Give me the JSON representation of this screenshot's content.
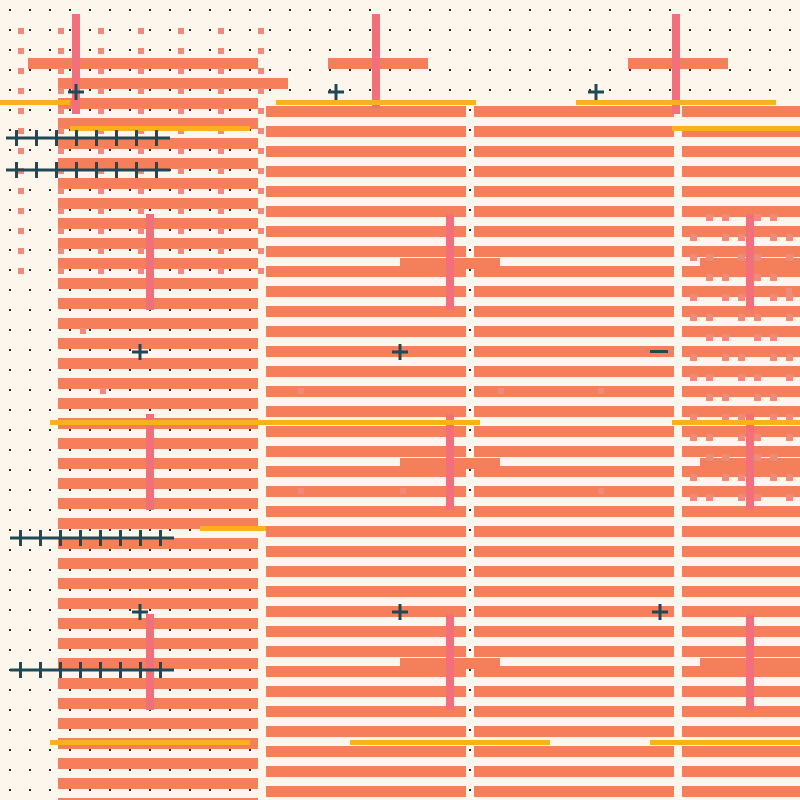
{
  "artwork": {
    "palette": {
      "background": "#fdf6ec",
      "dot": "#2a2a2a",
      "stripe": "#f47f5a",
      "square": "#f08a7a",
      "pillar": "#f2707c",
      "rule": "#f9b21c",
      "cross": "#1f4a55"
    },
    "motifs": [
      "dot-grid",
      "horizontal-stripes",
      "pink-squares",
      "pink-pillars",
      "yellow-rules",
      "teal-crosses",
      "teal-cross-chains"
    ]
  }
}
